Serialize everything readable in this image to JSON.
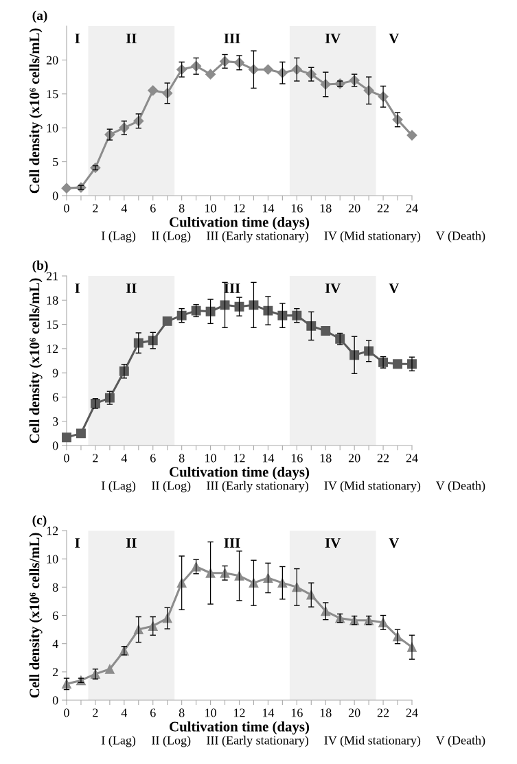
{
  "chart_data": [
    {
      "type": "line",
      "title": "(a)",
      "xlabel": "Cultivation time (days)",
      "ylabel": "Cell density (x10⁶ cells/mL)",
      "marker": "diamond",
      "color": "#8c8c8c",
      "x": [
        0,
        1,
        2,
        3,
        4,
        5,
        6,
        7,
        8,
        9,
        10,
        11,
        12,
        13,
        14,
        15,
        16,
        17,
        18,
        19,
        20,
        21,
        22,
        23,
        24
      ],
      "values": [
        1.1,
        1.2,
        4.1,
        9.0,
        10.0,
        11.0,
        15.5,
        15.1,
        18.6,
        19.1,
        17.9,
        19.8,
        19.6,
        18.6,
        18.6,
        18.1,
        18.6,
        17.9,
        16.4,
        16.5,
        17.0,
        15.5,
        14.6,
        11.2,
        8.9
      ],
      "errors": [
        null,
        0.3,
        0.3,
        0.8,
        1.0,
        1.05,
        null,
        1.5,
        1.1,
        1.2,
        null,
        1.0,
        1.05,
        2.75,
        null,
        1.6,
        1.7,
        1.0,
        1.8,
        0.4,
        0.9,
        2.0,
        1.55,
        1.05,
        null
      ],
      "xlim": [
        0,
        24
      ],
      "ylim": [
        0,
        25
      ],
      "yticks": [
        0,
        5,
        10,
        15,
        20
      ],
      "xticks": [
        0,
        {
          "value": 1,
          "label": null
        },
        2,
        {
          "value": 3,
          "label": null
        },
        4,
        {
          "value": 5,
          "label": null
        },
        6,
        {
          "value": 7,
          "label": null
        },
        8,
        {
          "value": 9,
          "label": null
        },
        10,
        {
          "value": 11,
          "label": null
        },
        12,
        {
          "value": 13,
          "label": null
        },
        14,
        {
          "value": 15,
          "label": null
        },
        16,
        {
          "value": 17,
          "label": null
        },
        18,
        {
          "value": 19,
          "label": null
        },
        20,
        {
          "value": 21,
          "label": null
        },
        22,
        {
          "value": 23,
          "label": null
        },
        24
      ],
      "bands": [
        {
          "axis": "x",
          "from": 1.5,
          "to": 7.5,
          "label": "II",
          "color": "#f0f0f0"
        },
        {
          "axis": "x",
          "from": 15.5,
          "to": 21.5,
          "label": "IV",
          "color": "#f0f0f0"
        }
      ],
      "annotations": [
        "I",
        "III",
        "V",
        "I (Lag)",
        "II (Log)",
        "III (Early stationary)",
        "IV (Mid stationary)",
        "V (Death)"
      ]
    },
    {
      "type": "line",
      "title": "(b)",
      "xlabel": "Cultivation time (days)",
      "ylabel": "Cell density (x10⁶ cells/mL)",
      "marker": "square",
      "color": "#595959",
      "x": [
        0,
        1,
        2,
        3,
        4,
        5,
        6,
        7,
        8,
        9,
        10,
        11,
        12,
        13,
        14,
        15,
        16,
        17,
        18,
        19,
        20,
        21,
        22,
        23,
        24
      ],
      "values": [
        1.0,
        1.5,
        5.2,
        5.9,
        9.2,
        12.7,
        13.0,
        15.4,
        16.1,
        16.7,
        16.6,
        17.4,
        17.2,
        17.4,
        16.7,
        16.1,
        16.1,
        14.8,
        14.2,
        13.2,
        11.2,
        11.7,
        10.3,
        10.1,
        10.1
      ],
      "errors": [
        null,
        null,
        0.6,
        0.8,
        0.85,
        1.25,
        1.0,
        null,
        0.85,
        0.75,
        1.5,
        2.8,
        1.15,
        2.8,
        1.75,
        1.5,
        0.85,
        1.75,
        null,
        0.7,
        2.3,
        1.3,
        0.7,
        null,
        0.85
      ],
      "xlim": [
        0,
        24
      ],
      "ylim": [
        0,
        21
      ],
      "yticks": [
        0,
        3,
        6,
        9,
        12,
        15,
        18,
        21
      ],
      "xticks": [
        0,
        {
          "value": 1,
          "label": null
        },
        2,
        {
          "value": 3,
          "label": null
        },
        4,
        {
          "value": 5,
          "label": null
        },
        6,
        {
          "value": 7,
          "label": null
        },
        8,
        {
          "value": 9,
          "label": null
        },
        10,
        {
          "value": 11,
          "label": null
        },
        12,
        {
          "value": 13,
          "label": null
        },
        14,
        {
          "value": 15,
          "label": null
        },
        16,
        {
          "value": 17,
          "label": null
        },
        18,
        {
          "value": 19,
          "label": null
        },
        20,
        {
          "value": 21,
          "label": null
        },
        22,
        {
          "value": 23,
          "label": null
        },
        24
      ],
      "bands": [
        {
          "axis": "x",
          "from": 1.5,
          "to": 7.5,
          "label": "II",
          "color": "#f0f0f0"
        },
        {
          "axis": "x",
          "from": 15.5,
          "to": 21.5,
          "label": "IV",
          "color": "#f0f0f0"
        }
      ],
      "annotations": [
        "I",
        "III",
        "V",
        "I (Lag)",
        "II (Log)",
        "III (Early stationary)",
        "IV (Mid stationary)",
        "V (Death)"
      ]
    },
    {
      "type": "line",
      "title": "(c)",
      "xlabel": "Cultivation time (days)",
      "ylabel": "Cell density (x10⁶ cells/mL)",
      "marker": "triangle",
      "color": "#8c8c8c",
      "x": [
        0,
        1,
        2,
        3,
        4,
        5,
        6,
        7,
        8,
        9,
        10,
        11,
        12,
        13,
        14,
        15,
        16,
        17,
        18,
        19,
        20,
        21,
        22,
        23,
        24
      ],
      "values": [
        1.15,
        1.4,
        1.85,
        2.2,
        3.5,
        5.0,
        5.25,
        5.8,
        8.3,
        9.45,
        9.0,
        9.0,
        8.8,
        8.3,
        8.65,
        8.3,
        8.0,
        7.45,
        6.3,
        5.8,
        5.65,
        5.65,
        5.5,
        4.5,
        3.75
      ],
      "errors": [
        0.4,
        0.15,
        0.35,
        null,
        0.3,
        0.9,
        0.65,
        0.75,
        1.9,
        0.5,
        2.2,
        0.5,
        1.75,
        1.6,
        1.05,
        1.15,
        1.3,
        0.85,
        0.6,
        0.3,
        0.3,
        0.3,
        0.5,
        0.5,
        0.85
      ],
      "xlim": [
        0,
        24
      ],
      "ylim": [
        0,
        12
      ],
      "yticks": [
        0,
        2,
        4,
        6,
        8,
        10,
        12
      ],
      "xticks": [
        0,
        {
          "value": 1,
          "label": null
        },
        2,
        {
          "value": 3,
          "label": null
        },
        4,
        {
          "value": 5,
          "label": null
        },
        6,
        {
          "value": 7,
          "label": null
        },
        8,
        {
          "value": 9,
          "label": null
        },
        10,
        {
          "value": 11,
          "label": null
        },
        12,
        {
          "value": 13,
          "label": null
        },
        14,
        {
          "value": 15,
          "label": null
        },
        16,
        {
          "value": 17,
          "label": null
        },
        18,
        {
          "value": 19,
          "label": null
        },
        20,
        {
          "value": 21,
          "label": null
        },
        22,
        {
          "value": 23,
          "label": null
        },
        24
      ],
      "bands": [
        {
          "axis": "x",
          "from": 1.5,
          "to": 7.5,
          "label": "II",
          "color": "#f0f0f0"
        },
        {
          "axis": "x",
          "from": 15.5,
          "to": 21.5,
          "label": "IV",
          "color": "#f0f0f0"
        }
      ],
      "annotations": [
        "I",
        "III",
        "V",
        "I (Lag)",
        "II (Log)",
        "III (Early stationary)",
        "IV (Mid stationary)",
        "V (Death)"
      ]
    }
  ]
}
